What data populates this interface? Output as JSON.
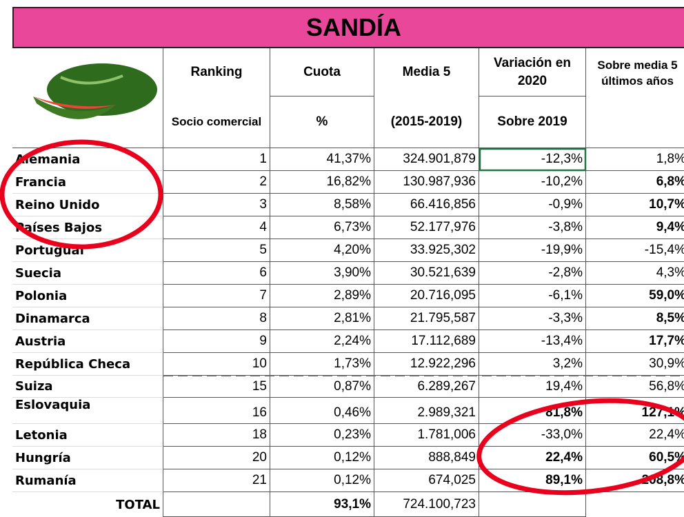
{
  "title": "SANDÍA",
  "header": {
    "ranking": "Ranking",
    "socio": "Socio comercial",
    "cuota": "Cuota",
    "pct": "%",
    "media": "Media 5",
    "period": "(2015-2019)",
    "variacion": "Variación en 2020",
    "sobre2019": "Sobre 2019",
    "sobre_media": "Sobre media 5 últimos años"
  },
  "rows": [
    [
      "Alemania",
      "1",
      "41,37%",
      "324.901,879",
      "-12,3%",
      "1,8%"
    ],
    [
      "Francia",
      "2",
      "16,82%",
      "130.987,936",
      "-10,2%",
      "6,8%"
    ],
    [
      "Reino Unido",
      "3",
      "8,58%",
      "66.416,856",
      "-0,9%",
      "10,7%"
    ],
    [
      "Países Bajos",
      "4",
      "6,73%",
      "52.177,976",
      "-3,8%",
      "9,4%"
    ],
    [
      "Portugual",
      "5",
      "4,20%",
      "33.925,302",
      "-19,9%",
      "-15,4%"
    ],
    [
      "Suecia",
      "6",
      "3,90%",
      "30.521,639",
      "-2,8%",
      "4,3%"
    ],
    [
      "Polonia",
      "7",
      "2,89%",
      "20.716,095",
      "-6,1%",
      "59,0%"
    ],
    [
      "Dinamarca",
      "8",
      "2,81%",
      "21.795,587",
      "-3,3%",
      "8,5%"
    ],
    [
      "Austria",
      "9",
      "2,24%",
      "17.112,689",
      "-13,4%",
      "17,7%"
    ],
    [
      "República Checa",
      "10",
      "1,73%",
      "12.922,296",
      "3,2%",
      "30,9%"
    ],
    [
      "Suiza",
      "15",
      "0,87%",
      "6.289,267",
      "19,4%",
      "56,8%"
    ],
    [
      "Eslovaquia",
      "16",
      "0,46%",
      "2.989,321",
      "81,8%",
      "127,1%"
    ],
    [
      "Letonia",
      "18",
      "0,23%",
      "1.781,006",
      "-33,0%",
      "22,4%"
    ],
    [
      "Hungría",
      "20",
      "0,12%",
      "888,849",
      "22,4%",
      "60,5%"
    ],
    [
      "Rumanía",
      "21",
      "0,12%",
      "674,025",
      "89,1%",
      "208,8%"
    ]
  ],
  "total": {
    "label": "TOTAL",
    "cuota": "93,1%",
    "media": "724.100,723"
  }
}
